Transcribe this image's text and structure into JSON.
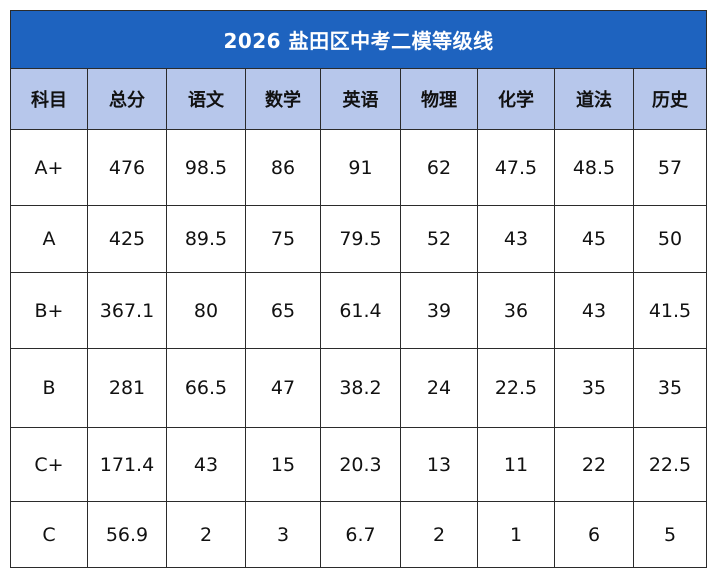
{
  "table": {
    "title": "2026 盐田区中考二模等级线",
    "headers": [
      "科目",
      "总分",
      "语文",
      "数学",
      "英语",
      "物理",
      "化学",
      "道法",
      "历史"
    ],
    "rows": [
      [
        "A+",
        "476",
        "98.5",
        "86",
        "91",
        "62",
        "47.5",
        "48.5",
        "57"
      ],
      [
        "A",
        "425",
        "89.5",
        "75",
        "79.5",
        "52",
        "43",
        "45",
        "50"
      ],
      [
        "B+",
        "367.1",
        "80",
        "65",
        "61.4",
        "39",
        "36",
        "43",
        "41.5"
      ],
      [
        "B",
        "281",
        "66.5",
        "47",
        "38.2",
        "24",
        "22.5",
        "35",
        "35"
      ],
      [
        "C+",
        "171.4",
        "43",
        "15",
        "20.3",
        "13",
        "11",
        "22",
        "22.5"
      ],
      [
        "C",
        "56.9",
        "2",
        "3",
        "6.7",
        "2",
        "1",
        "6",
        "5"
      ]
    ]
  },
  "colors": {
    "title_bg": "#1e63bf",
    "header_bg": "#b7c7eb",
    "border": "#2b2b2b"
  }
}
